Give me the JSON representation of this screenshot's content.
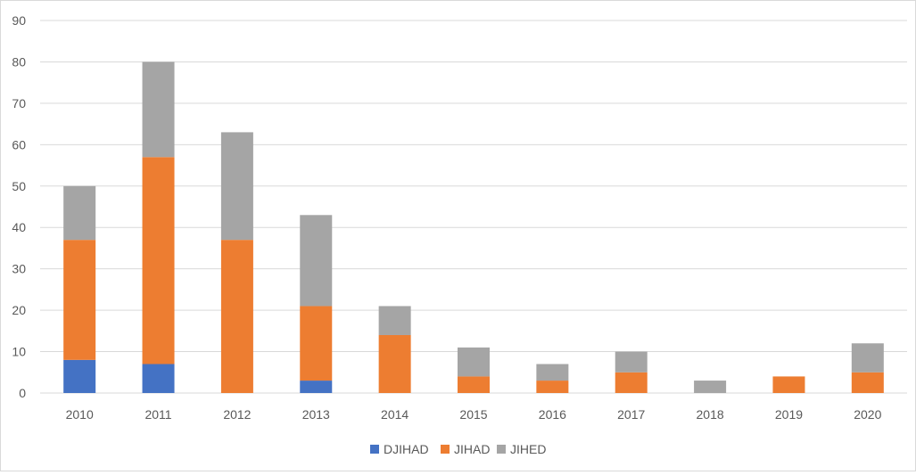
{
  "chart_data": {
    "type": "bar",
    "stacked": true,
    "title": "",
    "xlabel": "",
    "ylabel": "",
    "categories": [
      "2010",
      "2011",
      "2012",
      "2013",
      "2014",
      "2015",
      "2016",
      "2017",
      "2018",
      "2019",
      "2020"
    ],
    "series": [
      {
        "name": "DJIHAD",
        "color": "#4472c4",
        "values": [
          8,
          7,
          0,
          3,
          0,
          0,
          0,
          0,
          0,
          0,
          0
        ]
      },
      {
        "name": "JIHAD",
        "color": "#ed7d31",
        "values": [
          29,
          50,
          37,
          18,
          14,
          4,
          3,
          5,
          0,
          4,
          5
        ]
      },
      {
        "name": "JIHED",
        "color": "#a5a5a5",
        "values": [
          13,
          23,
          26,
          22,
          7,
          7,
          4,
          5,
          3,
          0,
          7
        ]
      }
    ],
    "ylim": [
      0,
      90
    ],
    "yticks": [
      0,
      10,
      20,
      30,
      40,
      50,
      60,
      70,
      80,
      90
    ],
    "grid": true,
    "gridline_color": "#d9d9d9",
    "legend_position": "bottom"
  }
}
